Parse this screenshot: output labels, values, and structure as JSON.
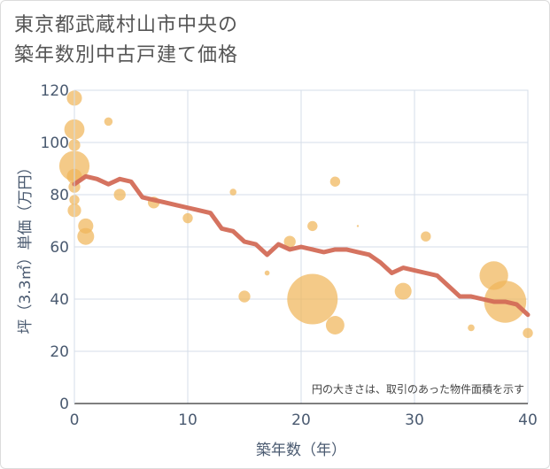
{
  "title": {
    "line1": "東京都武蔵村山市中央の",
    "line2": "築年数別中古戸建て価格"
  },
  "chart_data": {
    "type": "scatter",
    "title": "東京都武蔵村山市中央の築年数別中古戸建て価格",
    "xlabel": "築年数（年）",
    "ylabel": "坪（3.3㎡）単価（万円）",
    "xlim": [
      0,
      40
    ],
    "ylim": [
      0,
      120
    ],
    "xticks": [
      0,
      10,
      20,
      30,
      40
    ],
    "yticks": [
      0,
      20,
      40,
      60,
      80,
      100,
      120
    ],
    "grid": true,
    "annotation": "円の大きさは、取引のあった物件面積を示す",
    "colors": {
      "bubble": "#f0b65a",
      "line": "#d36b57",
      "grid": "#d5dde8",
      "axis_text": "#4a5a70"
    },
    "bubbles": [
      {
        "x": 0,
        "y": 117,
        "size": 9
      },
      {
        "x": 0,
        "y": 105,
        "size": 12
      },
      {
        "x": 0,
        "y": 99,
        "size": 7
      },
      {
        "x": 0,
        "y": 91,
        "size": 18
      },
      {
        "x": 0,
        "y": 87,
        "size": 9
      },
      {
        "x": 0,
        "y": 83,
        "size": 7
      },
      {
        "x": 0,
        "y": 78,
        "size": 6
      },
      {
        "x": 0,
        "y": 74,
        "size": 8
      },
      {
        "x": 1,
        "y": 68,
        "size": 9
      },
      {
        "x": 1,
        "y": 64,
        "size": 10
      },
      {
        "x": 3,
        "y": 108,
        "size": 5
      },
      {
        "x": 4,
        "y": 80,
        "size": 7
      },
      {
        "x": 7,
        "y": 77,
        "size": 7
      },
      {
        "x": 10,
        "y": 71,
        "size": 6
      },
      {
        "x": 14,
        "y": 81,
        "size": 4
      },
      {
        "x": 15,
        "y": 41,
        "size": 7
      },
      {
        "x": 17,
        "y": 50,
        "size": 3
      },
      {
        "x": 19,
        "y": 62,
        "size": 7
      },
      {
        "x": 21,
        "y": 40,
        "size": 30
      },
      {
        "x": 21,
        "y": 68,
        "size": 6
      },
      {
        "x": 23,
        "y": 85,
        "size": 6
      },
      {
        "x": 23,
        "y": 30,
        "size": 11
      },
      {
        "x": 25,
        "y": 68,
        "size": 1
      },
      {
        "x": 29,
        "y": 43,
        "size": 10
      },
      {
        "x": 31,
        "y": 64,
        "size": 6
      },
      {
        "x": 35,
        "y": 29,
        "size": 4
      },
      {
        "x": 37,
        "y": 49,
        "size": 17
      },
      {
        "x": 38,
        "y": 39,
        "size": 25
      },
      {
        "x": 40,
        "y": 27,
        "size": 6
      }
    ],
    "trend": {
      "x": [
        0,
        1,
        2,
        3,
        4,
        5,
        6,
        7,
        8,
        9,
        10,
        11,
        12,
        13,
        14,
        15,
        16,
        17,
        18,
        19,
        20,
        21,
        22,
        23,
        24,
        25,
        26,
        27,
        28,
        29,
        30,
        31,
        32,
        33,
        34,
        35,
        36,
        37,
        38,
        39,
        40
      ],
      "y": [
        84,
        87,
        86,
        84,
        86,
        85,
        79,
        78,
        77,
        76,
        75,
        74,
        73,
        67,
        66,
        62,
        61,
        57,
        61,
        59,
        60,
        59,
        58,
        59,
        59,
        58,
        57,
        54,
        50,
        52,
        51,
        50,
        49,
        45,
        41,
        41,
        40,
        39,
        39,
        38,
        34
      ]
    }
  }
}
